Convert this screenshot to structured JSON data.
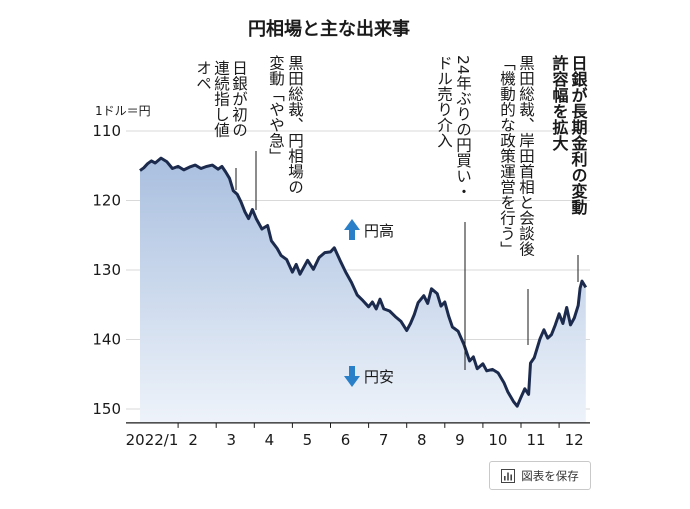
{
  "chart_data": {
    "type": "area",
    "title": "円相場と主な出来事",
    "unit_label": "1ドル＝円",
    "y_reversed": true,
    "ylim": [
      110,
      152
    ],
    "yticks": [
      110,
      120,
      130,
      140,
      150
    ],
    "x_tick_labels": [
      "2022/1",
      "2",
      "3",
      "4",
      "5",
      "6",
      "7",
      "8",
      "9",
      "10",
      "11",
      "12"
    ],
    "series": [
      {
        "values": [
          [
            0.0,
            115.7
          ],
          [
            0.1,
            115.3
          ],
          [
            0.2,
            114.7
          ],
          [
            0.3,
            114.3
          ],
          [
            0.4,
            114.6
          ],
          [
            0.55,
            113.9
          ],
          [
            0.7,
            114.4
          ],
          [
            0.85,
            115.4
          ],
          [
            1.0,
            115.1
          ],
          [
            1.15,
            115.6
          ],
          [
            1.3,
            115.2
          ],
          [
            1.45,
            114.9
          ],
          [
            1.6,
            115.4
          ],
          [
            1.75,
            115.1
          ],
          [
            1.9,
            114.9
          ],
          [
            2.05,
            115.5
          ],
          [
            2.15,
            115.1
          ],
          [
            2.25,
            115.9
          ],
          [
            2.35,
            116.8
          ],
          [
            2.45,
            118.6
          ],
          [
            2.55,
            119.1
          ],
          [
            2.65,
            120.2
          ],
          [
            2.75,
            121.6
          ],
          [
            2.85,
            122.6
          ],
          [
            2.95,
            121.3
          ],
          [
            3.05,
            122.6
          ],
          [
            3.2,
            124.1
          ],
          [
            3.35,
            123.6
          ],
          [
            3.45,
            125.8
          ],
          [
            3.6,
            126.9
          ],
          [
            3.7,
            127.9
          ],
          [
            3.85,
            128.5
          ],
          [
            4.0,
            130.3
          ],
          [
            4.1,
            129.2
          ],
          [
            4.2,
            130.6
          ],
          [
            4.3,
            129.6
          ],
          [
            4.4,
            128.6
          ],
          [
            4.55,
            129.9
          ],
          [
            4.7,
            128.2
          ],
          [
            4.85,
            127.5
          ],
          [
            5.0,
            127.4
          ],
          [
            5.1,
            126.8
          ],
          [
            5.25,
            128.6
          ],
          [
            5.4,
            130.3
          ],
          [
            5.55,
            131.8
          ],
          [
            5.7,
            133.6
          ],
          [
            5.85,
            134.4
          ],
          [
            6.0,
            135.3
          ],
          [
            6.1,
            134.6
          ],
          [
            6.2,
            135.6
          ],
          [
            6.3,
            134.2
          ],
          [
            6.4,
            135.6
          ],
          [
            6.55,
            135.9
          ],
          [
            6.7,
            136.7
          ],
          [
            6.85,
            137.4
          ],
          [
            7.0,
            138.7
          ],
          [
            7.1,
            137.7
          ],
          [
            7.2,
            136.4
          ],
          [
            7.3,
            134.7
          ],
          [
            7.45,
            133.7
          ],
          [
            7.55,
            134.8
          ],
          [
            7.65,
            132.7
          ],
          [
            7.8,
            133.4
          ],
          [
            7.9,
            135.2
          ],
          [
            8.0,
            134.6
          ],
          [
            8.1,
            136.6
          ],
          [
            8.2,
            138.2
          ],
          [
            8.35,
            138.8
          ],
          [
            8.5,
            140.7
          ],
          [
            8.65,
            143.1
          ],
          [
            8.75,
            142.5
          ],
          [
            8.85,
            144.2
          ],
          [
            9.0,
            143.5
          ],
          [
            9.1,
            144.5
          ],
          [
            9.25,
            144.3
          ],
          [
            9.4,
            144.8
          ],
          [
            9.55,
            146.2
          ],
          [
            9.65,
            147.5
          ],
          [
            9.8,
            148.9
          ],
          [
            9.9,
            149.6
          ],
          [
            10.0,
            148.3
          ],
          [
            10.1,
            147.1
          ],
          [
            10.2,
            147.9
          ],
          [
            10.25,
            143.4
          ],
          [
            10.35,
            142.6
          ],
          [
            10.5,
            139.9
          ],
          [
            10.6,
            138.6
          ],
          [
            10.7,
            139.8
          ],
          [
            10.8,
            139.3
          ],
          [
            10.9,
            137.9
          ],
          [
            11.0,
            136.3
          ],
          [
            11.1,
            137.7
          ],
          [
            11.2,
            135.4
          ],
          [
            11.3,
            137.9
          ],
          [
            11.4,
            136.9
          ],
          [
            11.5,
            135.1
          ],
          [
            11.55,
            132.6
          ],
          [
            11.6,
            131.6
          ],
          [
            11.7,
            132.5
          ]
        ]
      }
    ],
    "annotations": {
      "up_label": "円高",
      "down_label": "円安",
      "events": [
        {
          "lines": [
            "日銀が初の",
            "連続指し値",
            "オペ"
          ]
        },
        {
          "lines": [
            "黒田総裁、円相場の",
            "変動「やや急」"
          ]
        },
        {
          "lines": [
            "24年ぶりの円買い・",
            "ドル売り介入"
          ]
        },
        {
          "lines": [
            "黒田総裁、岸田首相と会談後",
            "「機動的な政策運営を行う」"
          ]
        },
        {
          "lines": [
            "日銀が長期金利の変動",
            "許容幅を拡大"
          ]
        }
      ]
    }
  },
  "save_button": {
    "label": "図表を保存",
    "icon": "bar-chart-icon"
  }
}
